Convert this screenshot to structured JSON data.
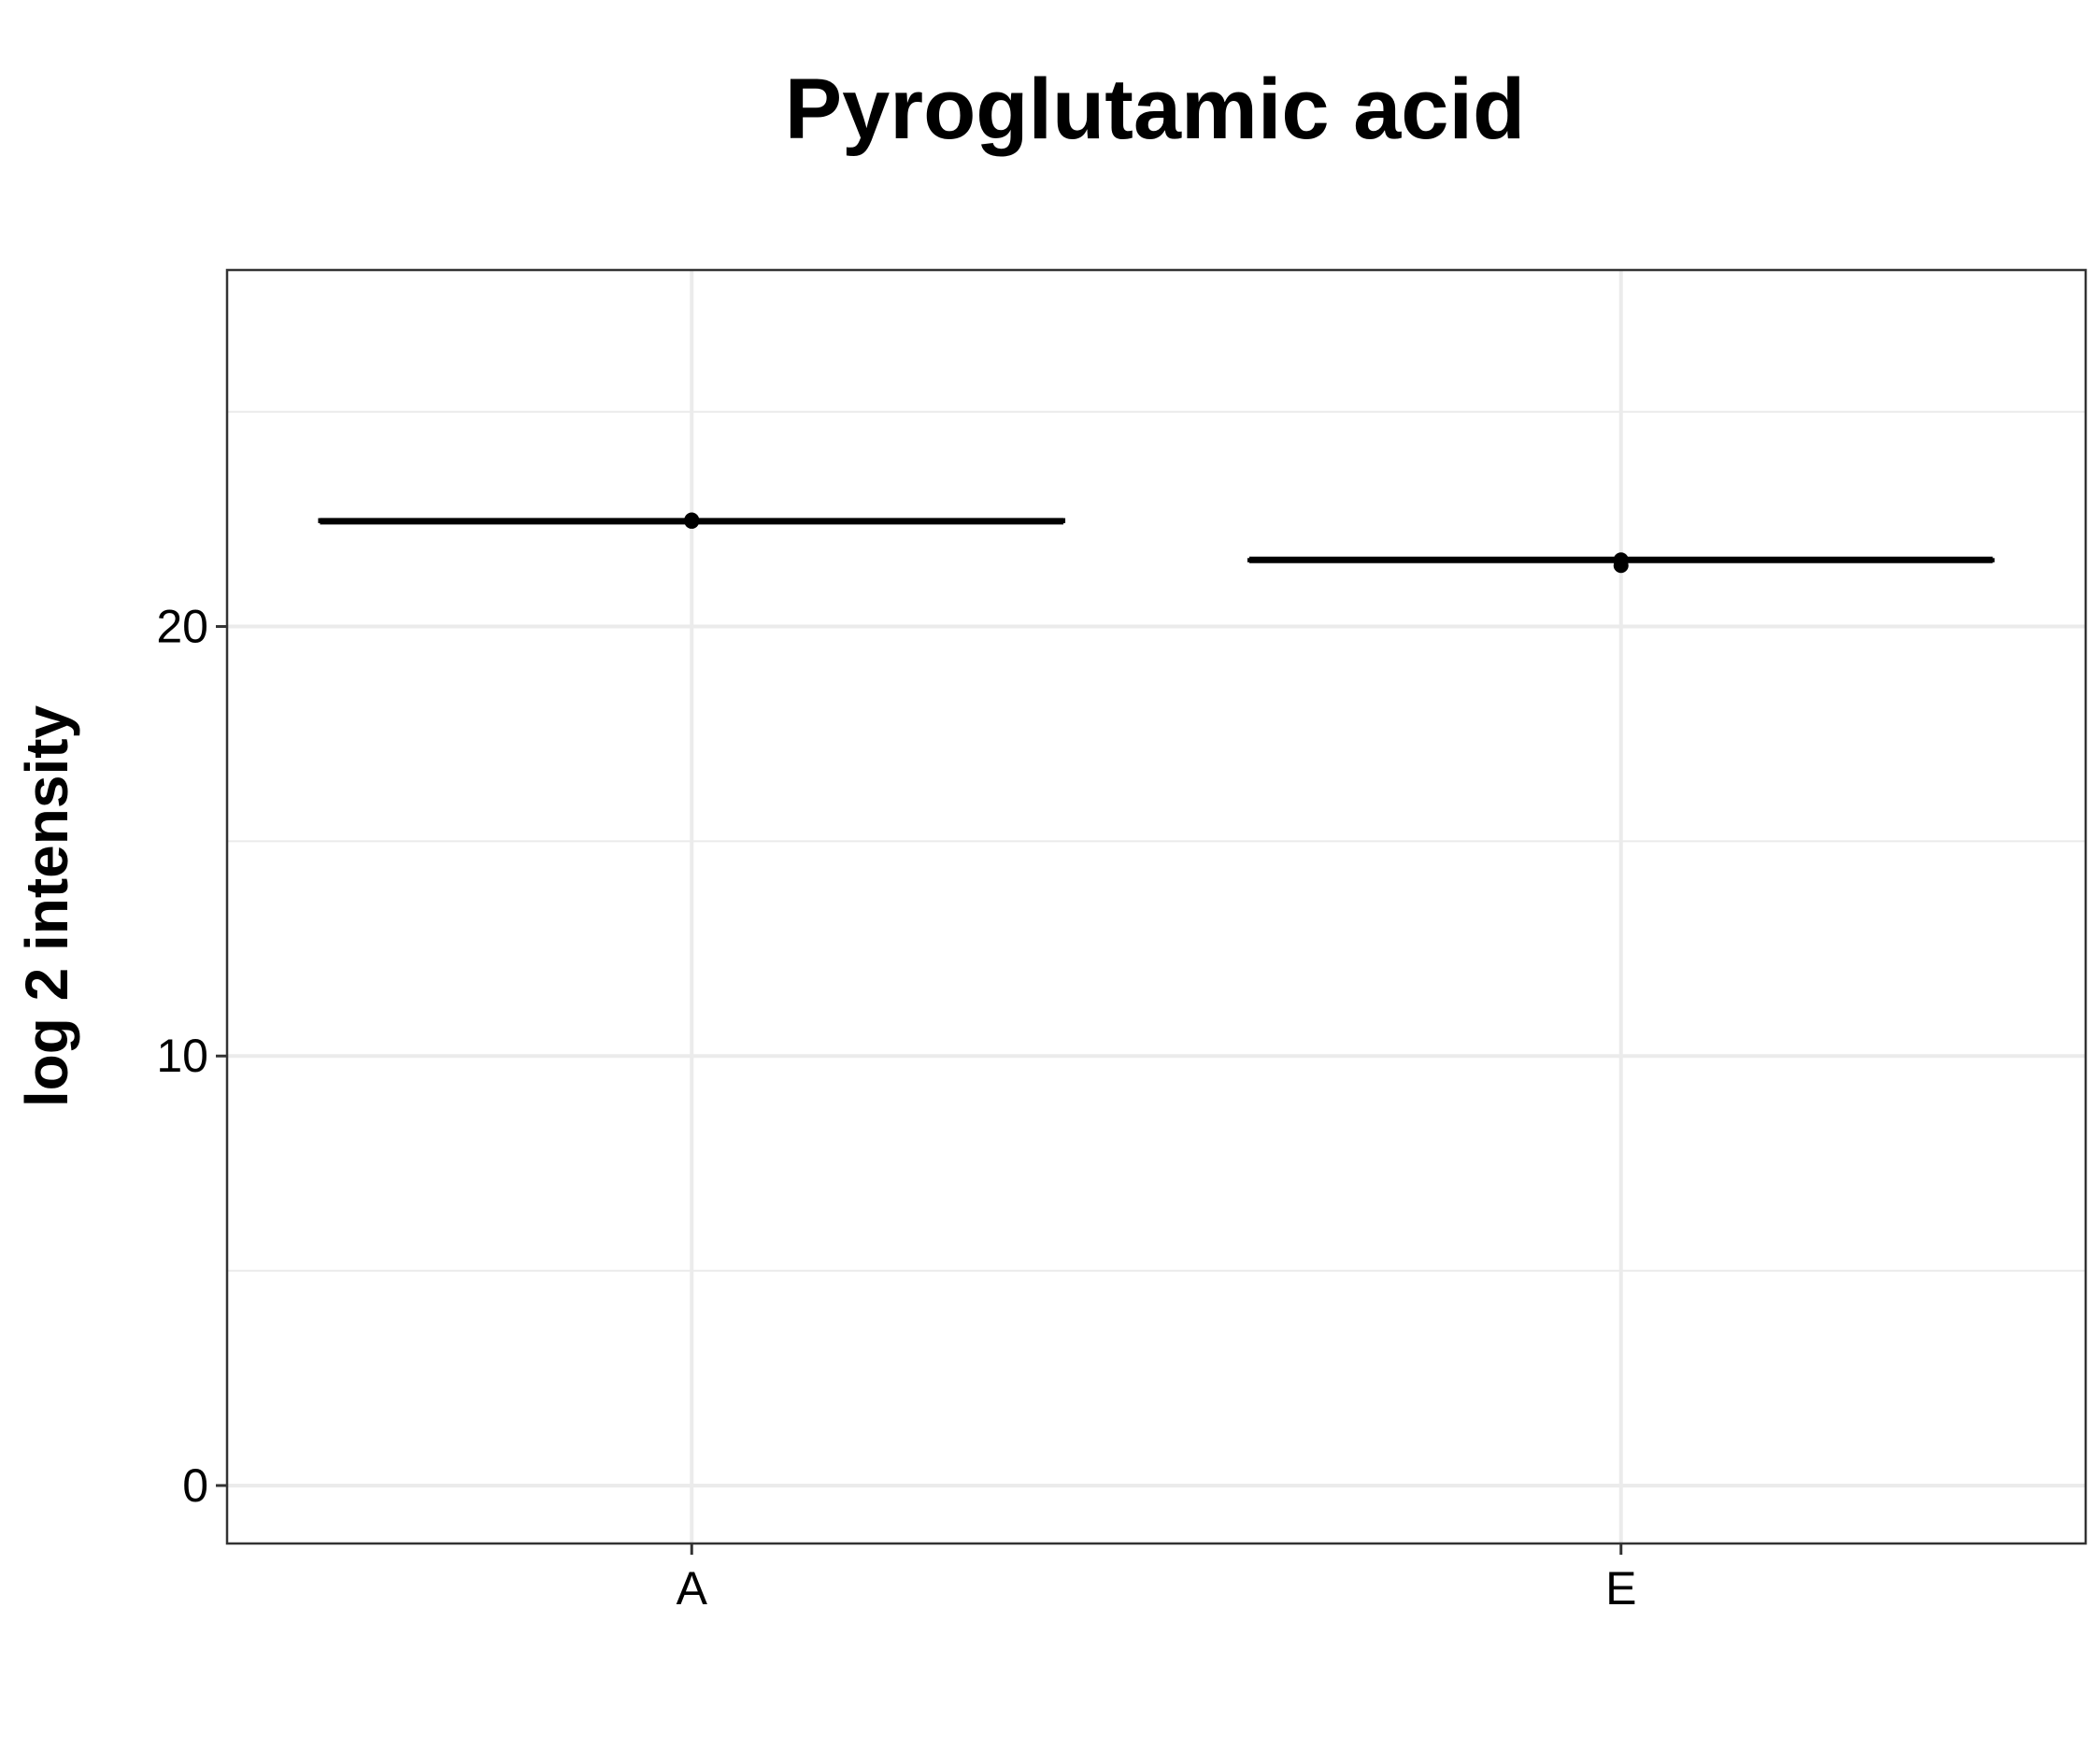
{
  "chart_data": {
    "type": "box",
    "title": "Pyroglutamic acid",
    "xlabel": "",
    "ylabel": "log 2 intensity",
    "categories": [
      "A",
      "E"
    ],
    "y_ticks": [
      0,
      10,
      20
    ],
    "ylim": [
      -1.35,
      28.3
    ],
    "grid": true,
    "groups": [
      {
        "category": "A",
        "q1": 22.45,
        "median": 22.45,
        "q3": 22.48,
        "whisker_low": 22.45,
        "whisker_high": 22.48,
        "points": [
          22.45,
          22.48
        ]
      },
      {
        "category": "E",
        "q1": 21.55,
        "median": 21.55,
        "q3": 21.55,
        "whisker_low": 21.55,
        "whisker_high": 21.55,
        "points": [
          21.55,
          21.42
        ]
      }
    ],
    "colors": {
      "box": "#000000",
      "grid": "#ebebeb",
      "panel_border": "#333333",
      "background": "#ffffff"
    }
  }
}
